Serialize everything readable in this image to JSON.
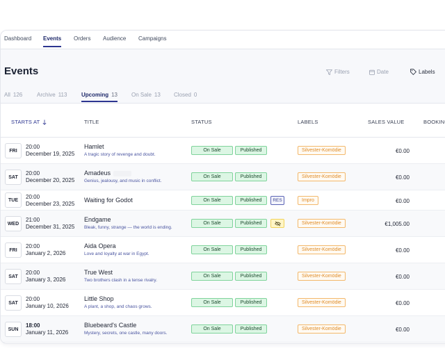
{
  "nav": {
    "items": [
      {
        "label": "Dashboard",
        "active": false
      },
      {
        "label": "Events",
        "active": true
      },
      {
        "label": "Orders",
        "active": false
      },
      {
        "label": "Audience",
        "active": false
      },
      {
        "label": "Campaigns",
        "active": false
      }
    ]
  },
  "page": {
    "title": "Events"
  },
  "toolbar": {
    "filters_label": "Filters",
    "date_label": "Date",
    "labels_label": "Labels"
  },
  "tabs": [
    {
      "label": "All",
      "count": "126",
      "active": false
    },
    {
      "label": "Archive",
      "count": "113",
      "active": false
    },
    {
      "label": "Upcoming",
      "count": "13",
      "active": true
    },
    {
      "label": "On Sale",
      "count": "13",
      "active": false
    },
    {
      "label": "Closed",
      "count": "0",
      "active": false
    }
  ],
  "table": {
    "columns": {
      "starts_at": "STARTS AT",
      "title": "TITLE",
      "status": "STATUS",
      "labels": "LABELS",
      "sales_value": "SALES VALUE",
      "bookings": "BOOKING"
    },
    "rows": [
      {
        "day": "FRI",
        "time": "20:00",
        "date": "December 19, 2025",
        "title": "Hamlet",
        "subtitle": "A tragic story of revenge and doubt.",
        "status": "On Sale",
        "published": "Published",
        "extra": "",
        "label": "Silvester-Komödie",
        "sales": "€0.00"
      },
      {
        "day": "SAT",
        "time": "20:00",
        "date": "December 20, 2025",
        "title": "Amadeus",
        "subtitle": "Genius, jealousy, and music in conflict.",
        "status": "On Sale",
        "published": "Published",
        "extra": "",
        "label": "Silvester-Komödie",
        "sales": "€0.00"
      },
      {
        "day": "TUE",
        "time": "20:00",
        "date": "December 23, 2025",
        "title": "Waiting for Godot",
        "subtitle": "",
        "status": "On Sale",
        "published": "Published",
        "extra": "RES",
        "label": "Impro",
        "sales": "€0.00"
      },
      {
        "day": "WED",
        "time": "21:00",
        "date": "December 31, 2025",
        "title": "Endgame",
        "subtitle": "Bleak, funny, strange — the world is ending.",
        "status": "On Sale",
        "published": "Published",
        "extra": "muted",
        "label": "Silvester-Komödie",
        "sales": "€1,005.00"
      },
      {
        "day": "FRI",
        "time": "20:00",
        "date": "January 2, 2026",
        "title": "Aida Opera",
        "subtitle": "Love and loyalty at war in Egypt.",
        "status": "On Sale",
        "published": "Published",
        "extra": "",
        "label": "Silvester-Komödie",
        "sales": "€0.00"
      },
      {
        "day": "SAT",
        "time": "20:00",
        "date": "January 3, 2026",
        "title": "True West",
        "subtitle": "Two brothers clash in a tense rivalry.",
        "status": "On Sale",
        "published": "Published",
        "extra": "",
        "label": "Silvester-Komödie",
        "sales": "€0.00"
      },
      {
        "day": "SAT",
        "time": "20:00",
        "date": "January 10, 2026",
        "title": "Little Shop",
        "subtitle": "A plant, a shop, and chaos grows.",
        "status": "On Sale",
        "published": "Published",
        "extra": "",
        "label": "Silvester-Komödie",
        "sales": "€0.00"
      },
      {
        "day": "SUN",
        "time": "18:00",
        "date": "January 11, 2026",
        "title": "Bluebeard's Castle",
        "subtitle": "Mystery, secrets, one castle, many doors.",
        "status": "On Sale",
        "published": "Published",
        "extra": "",
        "label": "Silvester-Komödie",
        "sales": "€0.00"
      }
    ]
  },
  "colors": {
    "accent": "#2c3590",
    "onsale_bg": "#dcf6e4",
    "onsale_border": "#7fd39b",
    "label_orange": "#e08d2a"
  }
}
